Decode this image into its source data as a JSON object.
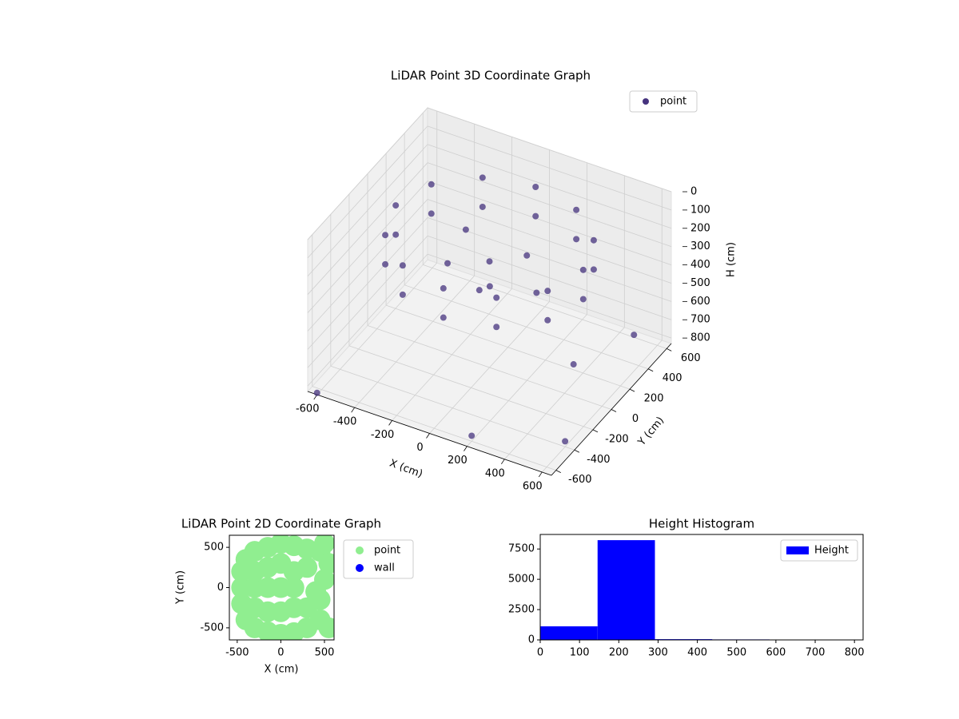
{
  "chart_data": [
    {
      "type": "scatter3d",
      "title": "LiDAR Point 3D Coordinate Graph",
      "x_label": "X (cm)",
      "y_label": "Y (cm)",
      "z_label": "H (cm)",
      "xlim": [
        -650,
        650
      ],
      "ylim": [
        -650,
        650
      ],
      "zlim": [
        830,
        0
      ],
      "xticks": [
        -600,
        -400,
        -200,
        0,
        200,
        400,
        600
      ],
      "yticks": [
        -600,
        -400,
        -200,
        0,
        200,
        400,
        600
      ],
      "zticks": [
        0,
        100,
        200,
        300,
        400,
        500,
        600,
        700,
        800
      ],
      "grid": true,
      "legend": "upper right",
      "series": [
        {
          "name": "point",
          "color": "#46337e",
          "x": [
            500,
            433,
            250,
            0,
            -250,
            -433,
            -500,
            -433,
            -250,
            0,
            250,
            433,
            500,
            433,
            250,
            0,
            -250,
            -433,
            -500,
            -433,
            -250,
            0,
            250,
            433,
            0,
            150,
            -200,
            100,
            -150,
            300,
            -600,
            350,
            600,
            -300,
            200,
            500
          ],
          "y": [
            0,
            250,
            433,
            500,
            433,
            250,
            0,
            -250,
            -433,
            -500,
            -433,
            -250,
            0,
            250,
            433,
            500,
            433,
            250,
            0,
            -250,
            -433,
            -500,
            -433,
            -250,
            0,
            100,
            150,
            -200,
            -150,
            -100,
            -650,
            200,
            -400,
            500,
            -600,
            550
          ],
          "z": [
            120,
            120,
            120,
            120,
            120,
            120,
            120,
            120,
            120,
            120,
            120,
            120,
            280,
            280,
            280,
            280,
            280,
            280,
            280,
            280,
            280,
            280,
            280,
            280,
            250,
            220,
            230,
            240,
            230,
            260,
            820,
            800,
            800,
            790,
            800,
            780
          ]
        }
      ]
    },
    {
      "type": "scatter",
      "title": "LiDAR Point 2D Coordinate Graph",
      "x_label": "X (cm)",
      "y_label": "Y (cm)",
      "xlim": [
        -590,
        610
      ],
      "ylim": [
        -650,
        650
      ],
      "xticks": [
        -500,
        0,
        500
      ],
      "yticks": [
        -500,
        0,
        500
      ],
      "legend": "outside right",
      "series": [
        {
          "name": "point",
          "color": "#90ee90",
          "x": [
            -450,
            -450,
            -450,
            -400,
            -400,
            -300,
            -300,
            -300,
            -300,
            -300,
            -150,
            -150,
            -150,
            -150,
            -150,
            0,
            0,
            0,
            0,
            0,
            150,
            150,
            150,
            150,
            150,
            300,
            300,
            300,
            300,
            450,
            450,
            450,
            500,
            550,
            500,
            550,
            400
          ],
          "y": [
            0,
            -200,
            200,
            350,
            -400,
            450,
            -500,
            0,
            200,
            -250,
            500,
            -550,
            0,
            250,
            -300,
            550,
            -580,
            0,
            300,
            -300,
            520,
            -560,
            200,
            -250,
            0,
            480,
            -500,
            250,
            -250,
            450,
            -400,
            -150,
            550,
            -500,
            100,
            300,
            -50
          ]
        },
        {
          "name": "wall",
          "color": "#0000ff",
          "x": [],
          "y": []
        }
      ]
    },
    {
      "type": "histogram",
      "title": "Height Histogram",
      "bins": [
        0,
        146,
        292,
        438,
        584,
        731
      ],
      "xlim": [
        0,
        822
      ],
      "ylim": [
        0,
        8700
      ],
      "xticks": [
        0,
        100,
        200,
        300,
        400,
        500,
        600,
        700,
        800
      ],
      "yticks": [
        0,
        2500,
        5000,
        7500
      ],
      "legend": "upper right",
      "series": [
        {
          "name": "Height",
          "color": "#0000ff",
          "values": [
            1120,
            8230,
            60,
            40,
            30
          ]
        }
      ]
    }
  ]
}
